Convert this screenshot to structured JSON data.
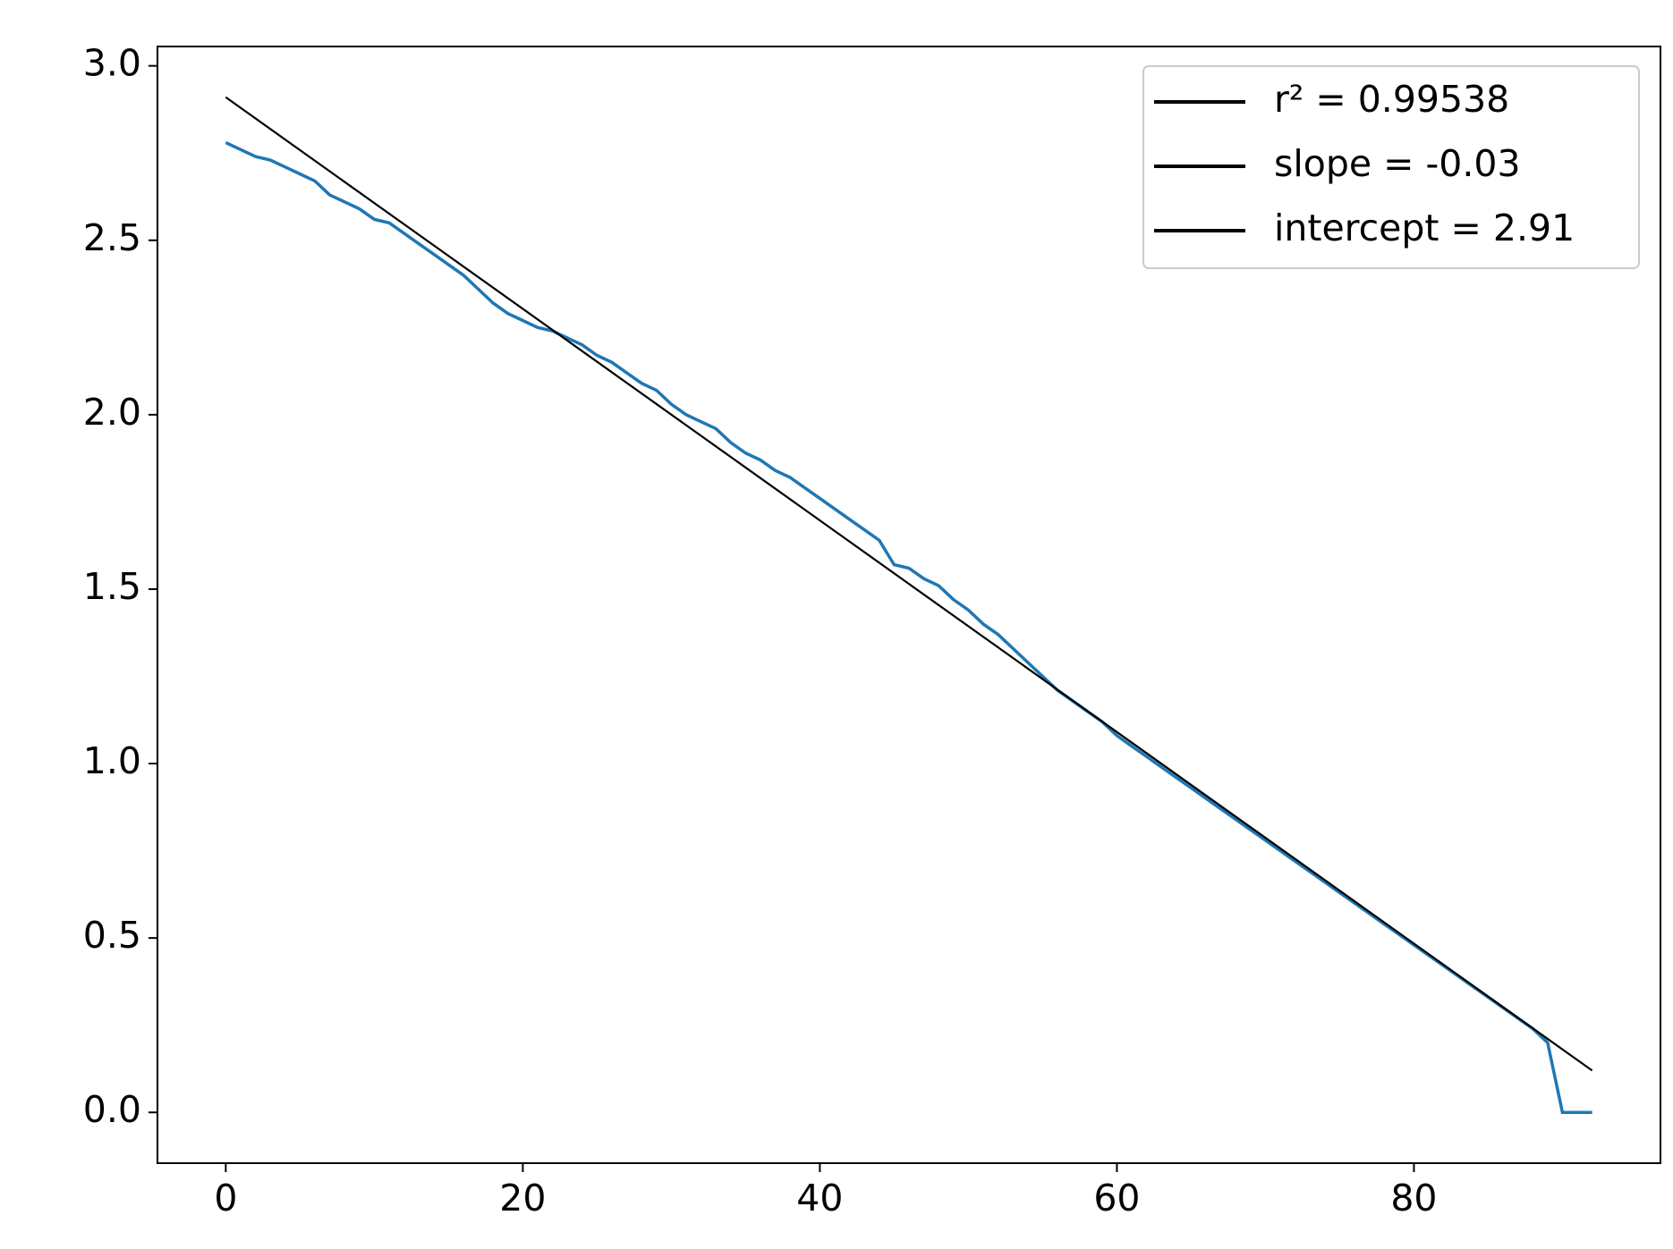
{
  "chart_data": {
    "type": "line",
    "xlim": [
      -4.6,
      96.6
    ],
    "ylim": [
      -0.1455,
      3.0555
    ],
    "xticks": [
      0,
      20,
      40,
      60,
      80
    ],
    "yticks": [
      {
        "value": 0,
        "label": "0.0"
      },
      0.5,
      {
        "value": 1,
        "label": "1.0"
      },
      1.5,
      {
        "value": 2,
        "label": "2.0"
      },
      2.5,
      {
        "value": 3,
        "label": "3.0"
      }
    ],
    "series": [
      {
        "color": "#1f77b4",
        "x": [
          0,
          1,
          2,
          3,
          4,
          5,
          6,
          7,
          8,
          9,
          10,
          11,
          12,
          13,
          14,
          15,
          16,
          17,
          18,
          19,
          20,
          21,
          22,
          23,
          24,
          25,
          26,
          27,
          28,
          29,
          30,
          31,
          32,
          33,
          34,
          35,
          36,
          37,
          38,
          39,
          40,
          41,
          42,
          43,
          44,
          45,
          46,
          47,
          48,
          49,
          50,
          51,
          52,
          53,
          54,
          55,
          56,
          57,
          58,
          59,
          60,
          61,
          62,
          63,
          64,
          65,
          66,
          67,
          68,
          69,
          70,
          71,
          72,
          73,
          74,
          75,
          76,
          77,
          78,
          79,
          80,
          81,
          82,
          83,
          84,
          85,
          86,
          87,
          88,
          89,
          90,
          91,
          92
        ],
        "values": [
          2.78,
          2.76,
          2.74,
          2.73,
          2.71,
          2.69,
          2.67,
          2.63,
          2.61,
          2.59,
          2.56,
          2.55,
          2.52,
          2.49,
          2.46,
          2.43,
          2.4,
          2.36,
          2.32,
          2.29,
          2.27,
          2.25,
          2.24,
          2.22,
          2.2,
          2.17,
          2.15,
          2.12,
          2.09,
          2.07,
          2.03,
          2.0,
          1.98,
          1.96,
          1.92,
          1.89,
          1.87,
          1.84,
          1.82,
          1.79,
          1.76,
          1.73,
          1.7,
          1.67,
          1.64,
          1.57,
          1.56,
          1.53,
          1.51,
          1.47,
          1.44,
          1.4,
          1.37,
          1.33,
          1.29,
          1.25,
          1.21,
          1.18,
          1.15,
          1.12,
          1.08,
          1.05,
          1.02,
          0.99,
          0.96,
          0.93,
          0.9,
          0.87,
          0.84,
          0.81,
          0.78,
          0.75,
          0.72,
          0.69,
          0.66,
          0.63,
          0.6,
          0.57,
          0.54,
          0.51,
          0.48,
          0.45,
          0.42,
          0.39,
          0.36,
          0.33,
          0.3,
          0.27,
          0.24,
          0.2,
          0.0,
          0.0,
          0.0
        ]
      },
      {
        "color": "#000000",
        "x": [
          0,
          92
        ],
        "values": [
          2.91,
          0.12
        ]
      }
    ],
    "legend": [
      {
        "label": "r² = 0.99538",
        "color": "#000000"
      },
      {
        "label": "slope = -0.03",
        "color": "#000000"
      },
      {
        "label": "intercept = 2.91",
        "color": "#000000"
      }
    ],
    "legend_position": "upper right"
  }
}
